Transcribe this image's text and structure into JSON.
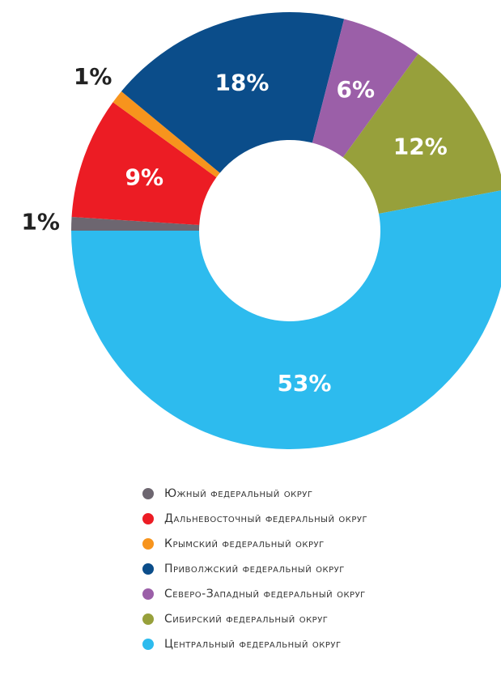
{
  "chart_data": {
    "type": "donut",
    "categories": [
      "Южный федеральный округ",
      "Дальневосточный федеральный округ",
      "Крымский федеральный округ",
      "Приволжский федеральный округ",
      "Северо-Западный федеральный округ",
      "Сибирский федеральный округ",
      "Центральный федеральный округ"
    ],
    "values": [
      1,
      9,
      1,
      18,
      6,
      12,
      53
    ],
    "value_labels": [
      "1%",
      "9%",
      "1%",
      "18%",
      "6%",
      "12%",
      "53%"
    ],
    "colors": [
      "#6d6670",
      "#ec1c24",
      "#f7941d",
      "#0b4d8a",
      "#9b5fa8",
      "#97a03b",
      "#2dbbee"
    ],
    "legend": "bottom"
  }
}
